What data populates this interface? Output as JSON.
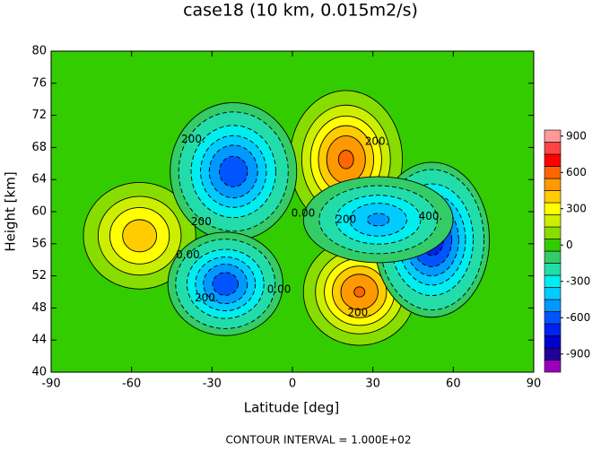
{
  "chart_data": {
    "type": "contour",
    "title": "case18 (10 km, 0.015m2/s)",
    "x_label": "Latitude [deg]",
    "y_label": "Height [km]",
    "footer": "CONTOUR INTERVAL = 1.000E+02",
    "xlim": [
      -90,
      90
    ],
    "xticks": [
      -90,
      -60,
      -30,
      0,
      30,
      60,
      90
    ],
    "ylim": [
      40,
      80
    ],
    "yticks": [
      40,
      44,
      48,
      52,
      56,
      60,
      64,
      68,
      72,
      76,
      80
    ],
    "features": [
      {
        "x": 20,
        "y": 66.5,
        "value": 620,
        "sx": 11,
        "sy": 4.5
      },
      {
        "x": 25,
        "y": 50,
        "value": 610,
        "sx": 11,
        "sy": 3.5
      },
      {
        "x": -57,
        "y": 57,
        "value": 460,
        "sx": 12,
        "sy": 3.8
      },
      {
        "x": -22,
        "y": 65,
        "value": -560,
        "sx": 11,
        "sy": 4
      },
      {
        "x": -25,
        "y": 51,
        "value": -560,
        "sx": 10,
        "sy": 3
      },
      {
        "x": 52,
        "y": 56.5,
        "value": -660,
        "sx": 10,
        "sy": 4.5
      },
      {
        "x": 32,
        "y": 59,
        "value": -420,
        "sx": 13,
        "sy": 2.5
      }
    ],
    "labels": [
      {
        "text": "200.",
        "x": -37,
        "y": 69
      },
      {
        "text": "200.",
        "x": 31.5,
        "y": 68.7
      },
      {
        "text": "0.00",
        "x": 4,
        "y": 59.8
      },
      {
        "text": "200",
        "x": 20,
        "y": 59
      },
      {
        "text": "400.",
        "x": 51.5,
        "y": 59.4
      },
      {
        "text": "200",
        "x": -34,
        "y": 58.7
      },
      {
        "text": "0.00",
        "x": -39,
        "y": 54.6
      },
      {
        "text": "0.00",
        "x": -5,
        "y": 50.3
      },
      {
        "text": "200.",
        "x": -32,
        "y": 49.2
      },
      {
        "text": "200.",
        "x": 25,
        "y": 47.4
      }
    ],
    "colorbar": {
      "levels": [
        -1000,
        -900,
        -800,
        -700,
        -600,
        -500,
        -400,
        -300,
        -200,
        -100,
        0,
        100,
        200,
        300,
        400,
        500,
        600,
        700,
        800,
        900,
        1000
      ],
      "colors": [
        "#9900bb",
        "#220099",
        "#0000cc",
        "#0022ee",
        "#0055ff",
        "#0099ff",
        "#00ccff",
        "#00eeee",
        "#22ddaa",
        "#33cc66",
        "#33cc00",
        "#88dd00",
        "#ccee00",
        "#ffff00",
        "#ffcc00",
        "#ff9900",
        "#ff6600",
        "#ff0000",
        "#ff4444",
        "#ff9999"
      ],
      "ticks": [
        -900,
        -600,
        -300,
        0,
        300,
        600,
        900
      ]
    }
  }
}
